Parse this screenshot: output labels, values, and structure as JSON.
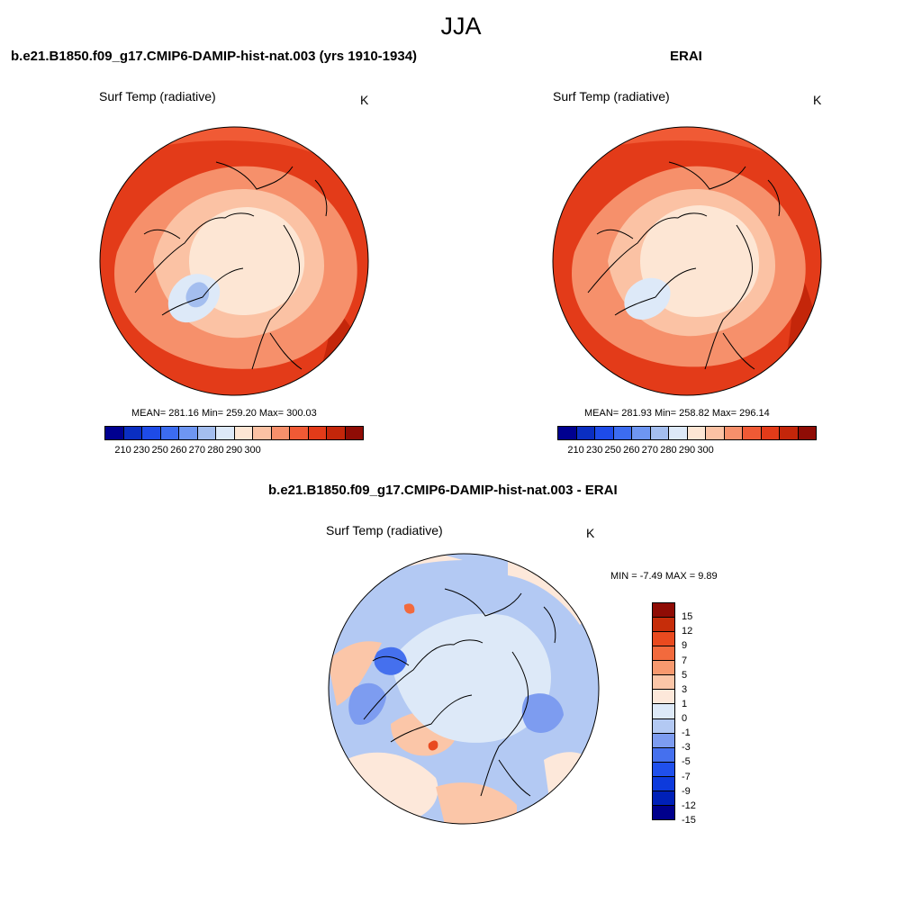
{
  "figure": {
    "season": "JJA",
    "colors": {
      "abs_palette": [
        "#000090",
        "#0a2ec2",
        "#1e4be8",
        "#3c6cf0",
        "#6e96f2",
        "#a4beef",
        "#dde9f8",
        "#fde6d4",
        "#fbc2a4",
        "#f6906b",
        "#f05a35",
        "#e33b19",
        "#c4260a",
        "#8f0c05"
      ],
      "diff_palette": [
        "#00008c",
        "#0020b8",
        "#0d3adc",
        "#2050ec",
        "#4570ee",
        "#7d9cf0",
        "#b3c9f3",
        "#dde9f8",
        "#fde8da",
        "#fbc6a8",
        "#f7996f",
        "#f26a3d",
        "#e94a1f",
        "#c62d0a",
        "#8f0c05"
      ]
    },
    "panels": [
      {
        "title": "b.e21.B1850.f09_g17.CMIP6-DAMIP-hist-nat.003 (yrs 1910-1934)",
        "variable": "Surf Temp (radiative)",
        "units": "K",
        "stats_text": "MEAN= 281.16  Min= 259.20  Max= 300.03",
        "colorbar_ticks": [
          "210",
          "230",
          "250",
          "260",
          "270",
          "280",
          "290",
          "300"
        ]
      },
      {
        "title": "ERAI",
        "variable": "Surf Temp (radiative)",
        "units": "K",
        "stats_text": "MEAN= 281.93  Min= 258.82  Max= 296.14",
        "colorbar_ticks": [
          "210",
          "230",
          "250",
          "260",
          "270",
          "280",
          "290",
          "300"
        ]
      }
    ],
    "difference": {
      "title": "b.e21.B1850.f09_g17.CMIP6-DAMIP-hist-nat.003 - ERAI",
      "variable": "Surf Temp (radiative)",
      "units": "K",
      "minmax_text": "MIN =  -7.49 MAX =   9.89",
      "colorbar_ticks": [
        "15",
        "12",
        "9",
        "7",
        "5",
        "3",
        "1",
        "0",
        "-1",
        "-3",
        "-5",
        "-7",
        "-9",
        "-12",
        "-15"
      ]
    }
  }
}
